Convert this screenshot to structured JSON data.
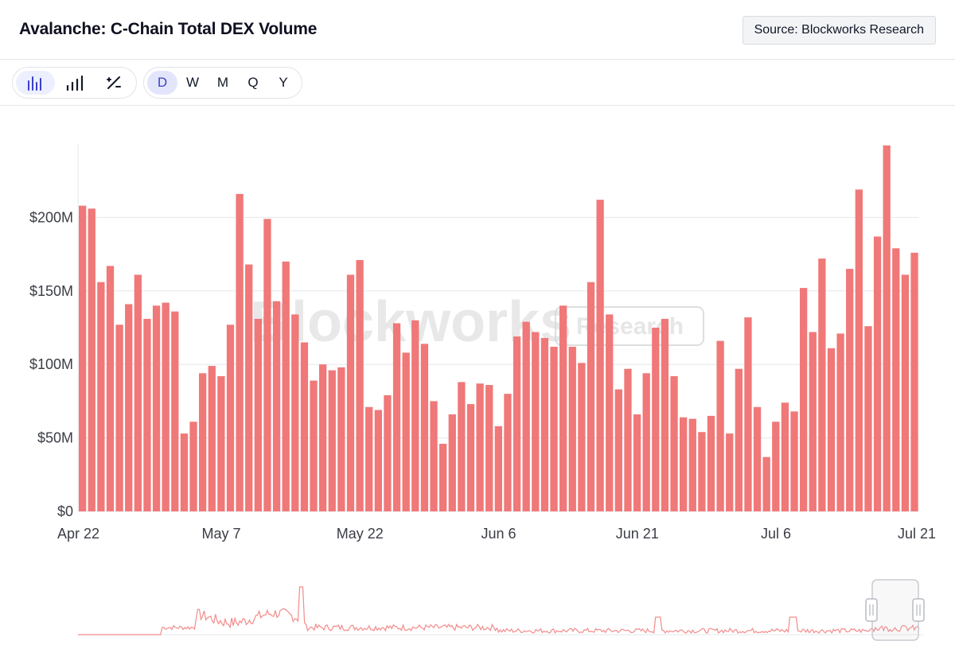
{
  "header": {
    "title": "Avalanche: C-Chain Total DEX Volume",
    "source_label": "Source: Blockworks Research"
  },
  "toolbar": {
    "chart_types": [
      {
        "icon": "bar-chart-icon",
        "active": true
      },
      {
        "icon": "signal-bars-icon",
        "active": false
      },
      {
        "icon": "percent-icon",
        "active": false
      }
    ],
    "periods": [
      {
        "label": "D",
        "active": true
      },
      {
        "label": "W",
        "active": false
      },
      {
        "label": "M",
        "active": false
      },
      {
        "label": "Q",
        "active": false
      },
      {
        "label": "Y",
        "active": false
      }
    ]
  },
  "watermark": {
    "brand": "Blockworks",
    "sub": "Research"
  },
  "colors": {
    "bar": "#f07878",
    "grid": "#e5e7eb",
    "navigator_line": "#f28b8b"
  },
  "chart_data": {
    "type": "bar",
    "title": "Avalanche: C-Chain Total DEX Volume",
    "xlabel": "",
    "ylabel": "",
    "ylim": [
      0,
      250
    ],
    "unit": "$M",
    "grid": true,
    "yticks": [
      {
        "value": 0,
        "label": "$0"
      },
      {
        "value": 50,
        "label": "$50M"
      },
      {
        "value": 100,
        "label": "$100M"
      },
      {
        "value": 150,
        "label": "$150M"
      },
      {
        "value": 200,
        "label": "$200M"
      }
    ],
    "xticks": [
      {
        "index": 0,
        "label": "Apr 22"
      },
      {
        "index": 15,
        "label": "May 7"
      },
      {
        "index": 30,
        "label": "May 22"
      },
      {
        "index": 45,
        "label": "Jun 6"
      },
      {
        "index": 60,
        "label": "Jun 21"
      },
      {
        "index": 75,
        "label": "Jul 6"
      },
      {
        "index": 90,
        "label": "Jul 21"
      }
    ],
    "start_date": "Apr 22",
    "values": [
      208,
      206,
      156,
      167,
      127,
      141,
      161,
      131,
      140,
      142,
      136,
      53,
      61,
      94,
      99,
      92,
      127,
      216,
      168,
      131,
      199,
      143,
      170,
      134,
      115,
      89,
      100,
      96,
      98,
      161,
      171,
      71,
      69,
      79,
      128,
      108,
      130,
      114,
      75,
      46,
      66,
      88,
      73,
      87,
      86,
      58,
      80,
      119,
      129,
      122,
      118,
      112,
      140,
      112,
      101,
      156,
      212,
      134,
      83,
      97,
      66,
      94,
      125,
      131,
      92,
      64,
      63,
      54,
      65,
      116,
      53,
      97,
      132,
      71,
      37,
      61,
      74,
      68,
      152,
      122,
      172,
      111,
      121,
      165,
      219,
      126,
      187,
      249,
      179,
      161,
      176
    ]
  }
}
